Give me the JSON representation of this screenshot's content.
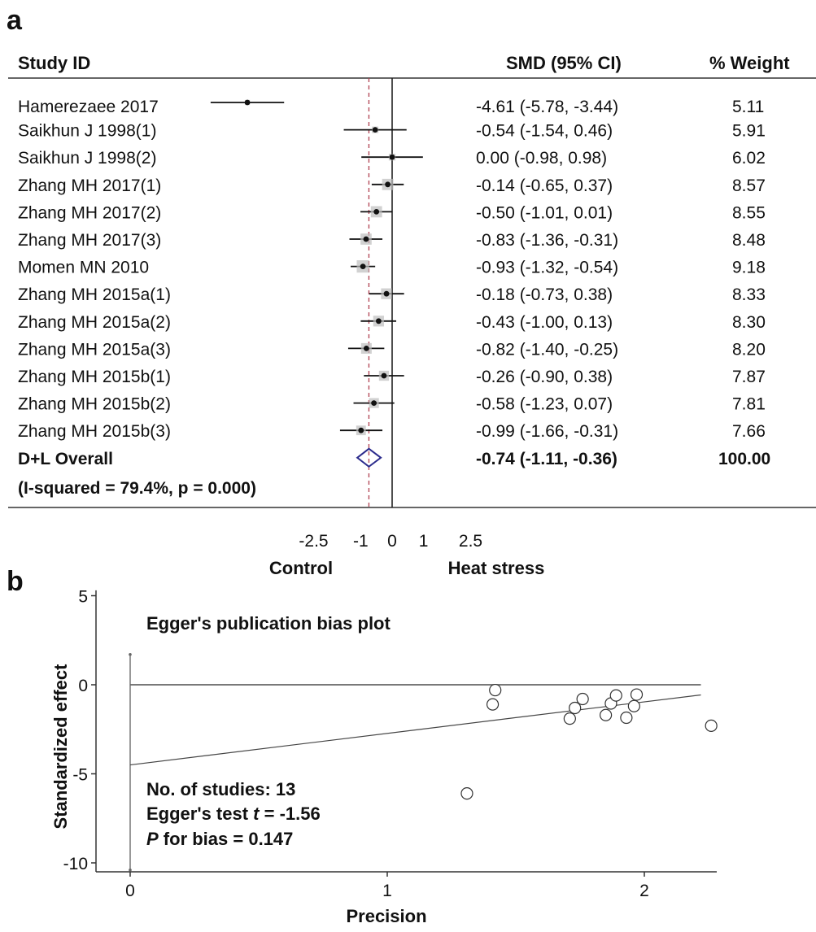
{
  "chart_data": [
    {
      "type": "forest",
      "panel_label": "a",
      "columns": {
        "study": "Study ID",
        "estimate": "SMD (95% CI)",
        "weight": "% Weight"
      },
      "studies": [
        {
          "name": "Hamerezaee 2017",
          "smd": -4.61,
          "lo": -5.78,
          "hi": -3.44,
          "ci_text": "-4.61 (-5.78, -3.44)",
          "weight": "5.11"
        },
        {
          "name": "Saikhun J 1998(1)",
          "smd": -0.54,
          "lo": -1.54,
          "hi": 0.46,
          "ci_text": "-0.54 (-1.54, 0.46)",
          "weight": "5.91"
        },
        {
          "name": "Saikhun J 1998(2)",
          "smd": 0.0,
          "lo": -0.98,
          "hi": 0.98,
          "ci_text": "0.00 (-0.98, 0.98)",
          "weight": "6.02"
        },
        {
          "name": "Zhang MH 2017(1)",
          "smd": -0.14,
          "lo": -0.65,
          "hi": 0.37,
          "ci_text": "-0.14 (-0.65, 0.37)",
          "weight": "8.57"
        },
        {
          "name": "Zhang MH 2017(2)",
          "smd": -0.5,
          "lo": -1.01,
          "hi": 0.01,
          "ci_text": "-0.50 (-1.01, 0.01)",
          "weight": "8.55"
        },
        {
          "name": "Zhang MH 2017(3)",
          "smd": -0.83,
          "lo": -1.36,
          "hi": -0.31,
          "ci_text": "-0.83 (-1.36, -0.31)",
          "weight": "8.48"
        },
        {
          "name": "Momen MN 2010",
          "smd": -0.93,
          "lo": -1.32,
          "hi": -0.54,
          "ci_text": "-0.93 (-1.32, -0.54)",
          "weight": "9.18"
        },
        {
          "name": "Zhang MH 2015a(1)",
          "smd": -0.18,
          "lo": -0.73,
          "hi": 0.38,
          "ci_text": "-0.18 (-0.73, 0.38)",
          "weight": "8.33"
        },
        {
          "name": "Zhang MH 2015a(2)",
          "smd": -0.43,
          "lo": -1.0,
          "hi": 0.13,
          "ci_text": "-0.43 (-1.00, 0.13)",
          "weight": "8.30"
        },
        {
          "name": "Zhang MH 2015a(3)",
          "smd": -0.82,
          "lo": -1.4,
          "hi": -0.25,
          "ci_text": "-0.82 (-1.40, -0.25)",
          "weight": "8.20"
        },
        {
          "name": "Zhang MH 2015b(1)",
          "smd": -0.26,
          "lo": -0.9,
          "hi": 0.38,
          "ci_text": "-0.26 (-0.90, 0.38)",
          "weight": "7.87"
        },
        {
          "name": "Zhang MH 2015b(2)",
          "smd": -0.58,
          "lo": -1.23,
          "hi": 0.07,
          "ci_text": "-0.58 (-1.23, 0.07)",
          "weight": "7.81"
        },
        {
          "name": "Zhang MH 2015b(3)",
          "smd": -0.99,
          "lo": -1.66,
          "hi": -0.31,
          "ci_text": "-0.99 (-1.66, -0.31)",
          "weight": "7.66"
        }
      ],
      "overall": {
        "label": "D+L Overall",
        "heterogeneity": "(I-squared = 79.4%,  p = 0.000)",
        "smd": -0.74,
        "lo": -1.11,
        "hi": -0.36,
        "ci_text": "-0.74 (-1.11, -0.36)",
        "weight": "100.00"
      },
      "x_ticks": [
        {
          "value": -2.5,
          "label": "-2.5"
        },
        {
          "value": -1,
          "label": "-1"
        },
        {
          "value": 0,
          "label": "0"
        },
        {
          "value": 1,
          "label": "1"
        },
        {
          "value": 2.5,
          "label": "2.5"
        }
      ],
      "side_labels": {
        "left": "Control",
        "right": "Heat stress"
      },
      "colors": {
        "diamond": "#2b2b8c",
        "overall_line": "#b04050",
        "marks": "#111111"
      }
    },
    {
      "type": "scatter",
      "panel_label": "b",
      "title": "Egger's publication bias plot",
      "xlabel": "Precision",
      "ylabel": "Standardized effect",
      "xlim": [
        0,
        2.25
      ],
      "ylim": [
        -10.5,
        5.3
      ],
      "x_ticks": [
        0,
        1,
        2
      ],
      "y_ticks": [
        5,
        0,
        -5,
        -10
      ],
      "points": [
        {
          "x": 1.42,
          "y": -0.3
        },
        {
          "x": 1.41,
          "y": -1.1
        },
        {
          "x": 1.31,
          "y": -6.1
        },
        {
          "x": 1.71,
          "y": -1.9
        },
        {
          "x": 1.73,
          "y": -1.3
        },
        {
          "x": 1.76,
          "y": -0.8
        },
        {
          "x": 1.85,
          "y": -1.7
        },
        {
          "x": 1.87,
          "y": -1.05
        },
        {
          "x": 1.89,
          "y": -0.6
        },
        {
          "x": 1.93,
          "y": -1.85
        },
        {
          "x": 1.96,
          "y": -1.2
        },
        {
          "x": 1.97,
          "y": -0.55
        },
        {
          "x": 2.26,
          "y": -2.3
        }
      ],
      "reference_line_y": 0,
      "regression": {
        "intercept": -4.5,
        "slope": 1.77,
        "x_end": 2.22
      },
      "intercept_ci": {
        "lo": -10.4,
        "hi": 1.7
      },
      "annotations": {
        "n_studies": "No. of studies: 13",
        "egger_prefix": "Egger's test ",
        "egger_t": "t",
        "egger_value": " = -1.56",
        "p_italic": "P",
        "p_rest": " for bias = 0.147"
      }
    }
  ]
}
